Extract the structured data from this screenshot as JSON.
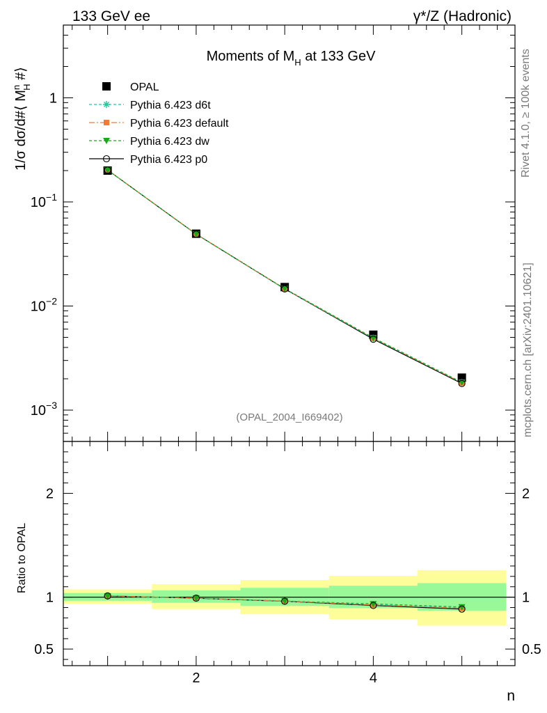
{
  "header": {
    "left": "133 GeV ee",
    "right": "γ*/Z (Hadronic)"
  },
  "side": {
    "rivet": "Rivet 4.1.0, ≥ 100k events",
    "mcplots": "mcplots.cern.ch [arXiv:2401.10621]"
  },
  "chart_data": [
    {
      "type": "line",
      "panel": "main",
      "title": {
        "pre": "Moments of M",
        "sub": "H",
        "post": " at 133 GeV"
      },
      "ylabel": "1/σ  dσ/d#⟨ M",
      "ylabel_sup": "n",
      "ylabel_sub": "H",
      "ylabel_end": " #⟩",
      "yscale": "log",
      "ylim": [
        0.0005,
        5
      ],
      "xlim": [
        0.5,
        5.6
      ],
      "yticks": [
        {
          "value": 1,
          "base": "1",
          "exp": ""
        },
        {
          "value": 0.1,
          "base": "10",
          "exp": "−1"
        },
        {
          "value": 0.01,
          "base": "10",
          "exp": "−2"
        },
        {
          "value": 0.001,
          "base": "10",
          "exp": "−3"
        }
      ],
      "watermark": "(OPAL_2004_I669402)",
      "legend_position": "top-left",
      "x": [
        1,
        2,
        3,
        4,
        5
      ],
      "series": [
        {
          "name": "OPAL",
          "color": "#000000",
          "marker": "square",
          "values": [
            0.2,
            0.0495,
            0.0152,
            0.0053,
            0.00205
          ]
        },
        {
          "name": "Pythia 6.423 d6t",
          "color": "#21c79a",
          "marker": "star",
          "dash": "4 3",
          "values": [
            0.202,
            0.049,
            0.0146,
            0.0049,
            0.00184
          ]
        },
        {
          "name": "Pythia 6.423 default",
          "color": "#f07b36",
          "marker": "filled-square",
          "dash": "8 3 2 3",
          "values": [
            0.2025,
            0.0492,
            0.0146,
            0.0049,
            0.00183
          ]
        },
        {
          "name": "Pythia 6.423 dw",
          "color": "#18a818",
          "marker": "triangle-down",
          "dash": "4 3",
          "values": [
            0.2022,
            0.0491,
            0.0147,
            0.00495,
            0.00185
          ]
        },
        {
          "name": "Pythia 6.423 p0",
          "color": "#000000",
          "marker": "open-circle",
          "dash": "",
          "values": [
            0.2025,
            0.049,
            0.0146,
            0.0048,
            0.0018
          ]
        }
      ]
    },
    {
      "type": "line",
      "panel": "ratio",
      "ylabel": "Ratio to OPAL",
      "xlabel": "n",
      "ylim": [
        0.34,
        2.5
      ],
      "xlim": [
        0.5,
        5.6
      ],
      "yticks": [
        2,
        1,
        0.5
      ],
      "ytick_labels": [
        "2",
        "1",
        "0.5"
      ],
      "xticks": [
        2,
        4
      ],
      "xtick_labels": [
        "2",
        "4"
      ],
      "bins": [
        {
          "x0": 0.5,
          "x1": 1.5,
          "stat": [
            0.965,
            1.04
          ],
          "total": [
            0.935,
            1.075
          ]
        },
        {
          "x0": 1.5,
          "x1": 2.5,
          "stat": [
            0.945,
            1.065
          ],
          "total": [
            0.885,
            1.125
          ]
        },
        {
          "x0": 2.5,
          "x1": 3.5,
          "stat": [
            0.915,
            1.09
          ],
          "total": [
            0.835,
            1.165
          ]
        },
        {
          "x0": 3.5,
          "x1": 4.5,
          "stat": [
            0.895,
            1.11
          ],
          "total": [
            0.785,
            1.205
          ]
        },
        {
          "x0": 4.5,
          "x1": 5.5,
          "stat": [
            0.87,
            1.135
          ],
          "total": [
            0.725,
            1.26
          ]
        }
      ],
      "band_colors": {
        "stat": "#99f999",
        "total": "#fdfd9a"
      },
      "x": [
        1,
        2,
        3,
        4,
        5
      ],
      "series": [
        {
          "name": "Pythia 6.423 d6t",
          "color": "#21c79a",
          "marker": "star",
          "dash": "4 3",
          "values": [
            1.01,
            0.99,
            0.96,
            0.93,
            0.9
          ]
        },
        {
          "name": "Pythia 6.423 default",
          "color": "#f07b36",
          "marker": "filled-square",
          "dash": "8 3 2 3",
          "values": [
            1.012,
            0.992,
            0.962,
            0.925,
            0.893
          ]
        },
        {
          "name": "Pythia 6.423 dw",
          "color": "#18a818",
          "marker": "triangle-down",
          "dash": "4 3",
          "values": [
            1.011,
            0.991,
            0.963,
            0.935,
            0.905
          ]
        },
        {
          "name": "Pythia 6.423 p0",
          "color": "#000000",
          "marker": "open-circle",
          "dash": "",
          "values": [
            1.012,
            0.99,
            0.96,
            0.92,
            0.885
          ]
        }
      ]
    }
  ]
}
